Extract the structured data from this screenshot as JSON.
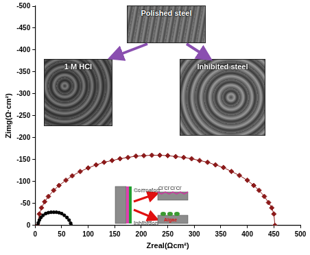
{
  "chart_data": {
    "type": "scatter",
    "x_label": "Zreal(Ωcm²)",
    "y_label": "Zimg(Ω·cm²)",
    "xlim": [
      0,
      500
    ],
    "xticks": [
      0,
      50,
      100,
      150,
      200,
      250,
      300,
      350,
      400,
      450,
      500
    ],
    "ylim": [
      0,
      -500
    ],
    "yticks": [
      0,
      -50,
      -100,
      -150,
      -200,
      -250,
      -300,
      -350,
      -400,
      -450,
      -500
    ],
    "grid": false,
    "series": [
      {
        "color": "#000000",
        "marker": "circle",
        "line_style": "none",
        "x": [
          5,
          6,
          8,
          11,
          15,
          20,
          25,
          30,
          35,
          40,
          45,
          50,
          55,
          60,
          64,
          67,
          68
        ],
        "values": [
          0,
          -6,
          -12,
          -18,
          -23,
          -27,
          -29,
          -30,
          -30,
          -30,
          -29,
          -27,
          -23,
          -18,
          -12,
          -5,
          0
        ]
      },
      {
        "color": "#8b1a1a",
        "marker": "diamond",
        "line_style": "solid",
        "x": [
          5,
          8,
          12,
          18,
          25,
          35,
          45,
          58,
          70,
          85,
          100,
          115,
          130,
          145,
          160,
          175,
          190,
          205,
          220,
          235,
          250,
          265,
          280,
          295,
          310,
          325,
          340,
          355,
          370,
          385,
          400,
          412,
          422,
          432,
          440,
          446,
          450,
          452
        ],
        "values": [
          0,
          -26,
          -40,
          -54,
          -66,
          -80,
          -91,
          -103,
          -113,
          -123,
          -131,
          -138,
          -144,
          -148,
          -152,
          -155,
          -158,
          -159,
          -160,
          -160,
          -159,
          -157,
          -155,
          -152,
          -148,
          -144,
          -138,
          -132,
          -123,
          -114,
          -103,
          -91,
          -80,
          -66,
          -52,
          -40,
          -26,
          0
        ]
      }
    ],
    "annotations": {
      "micrographs": [
        "Polished steel",
        "1 M HCl",
        "Inhibited steel"
      ],
      "schematic": {
        "top": "Corrosion",
        "bottom": "Inhibition",
        "ions": "Cl⁻Cl⁻Cl⁻Cl⁻",
        "film": "Algae"
      }
    }
  }
}
